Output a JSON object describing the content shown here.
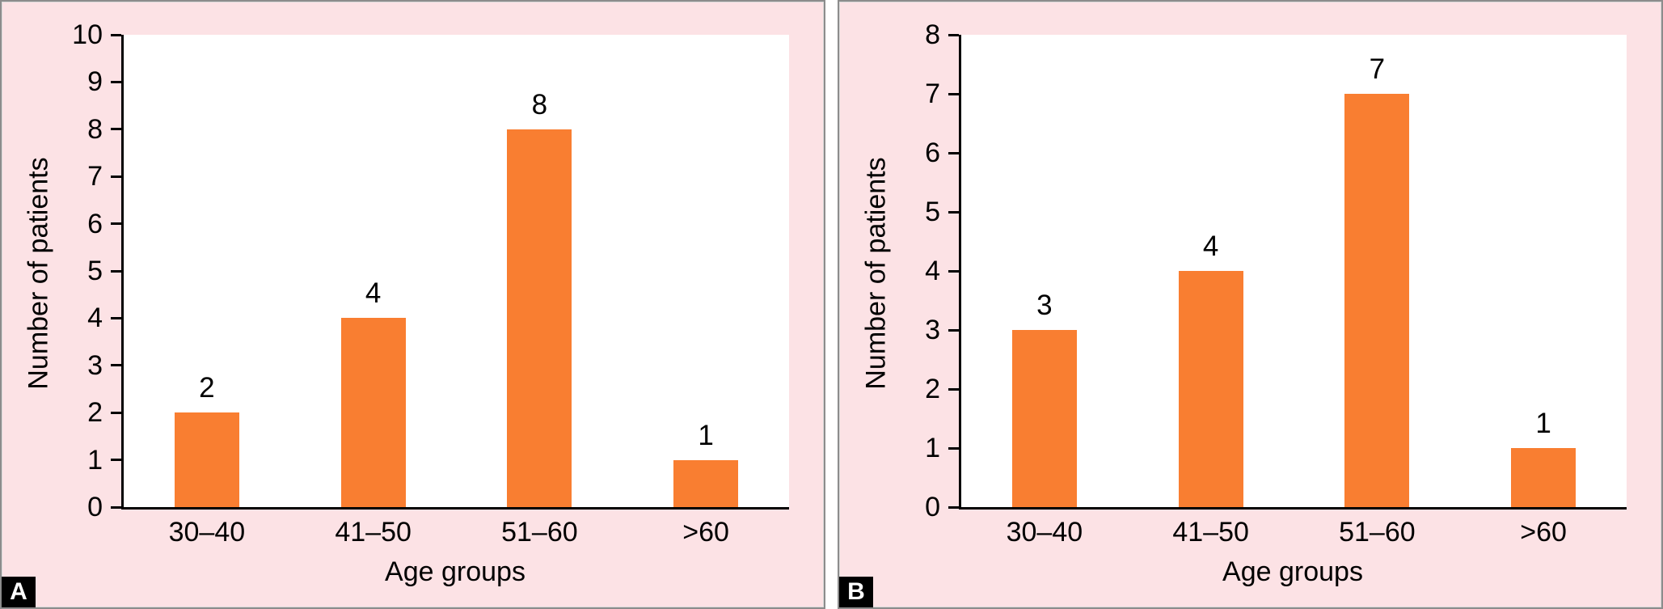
{
  "figure": {
    "background": "#ffffff",
    "panel_background": "#FCE2E5",
    "panel_border_color": "#8C8C8C",
    "bar_color": "#F97E31",
    "axis_color": "#000000",
    "badge_background": "#000000",
    "badge_text_color": "#ffffff"
  },
  "chart_data": [
    {
      "panel_label": "A",
      "type": "bar",
      "title": "",
      "categories": [
        "30–40",
        "41–50",
        "51–60",
        ">60"
      ],
      "values": [
        2,
        4,
        8,
        1
      ],
      "xlabel": "Age groups",
      "ylabel": "Number of patients",
      "ylim": [
        0,
        10
      ],
      "yticks": [
        0,
        1,
        2,
        3,
        4,
        5,
        6,
        7,
        8,
        9,
        10
      ],
      "grid": false,
      "legend": false,
      "bar_value_labels": [
        2,
        4,
        8,
        1
      ]
    },
    {
      "panel_label": "B",
      "type": "bar",
      "title": "",
      "categories": [
        "30–40",
        "41–50",
        "51–60",
        ">60"
      ],
      "values": [
        3,
        4,
        7,
        1
      ],
      "xlabel": "Age groups",
      "ylabel": "Number of patients",
      "ylim": [
        0,
        8
      ],
      "yticks": [
        0,
        1,
        2,
        3,
        4,
        5,
        6,
        7,
        8
      ],
      "grid": false,
      "legend": false,
      "bar_value_labels": [
        3,
        4,
        7,
        1
      ]
    }
  ]
}
